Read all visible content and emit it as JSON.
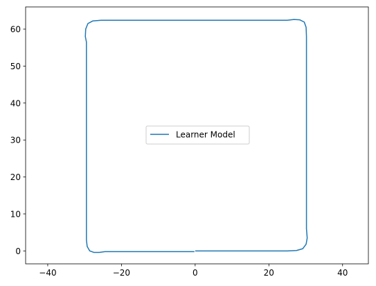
{
  "chart_data": {
    "type": "line",
    "title": "",
    "xlabel": "",
    "ylabel": "",
    "xlim": [
      -46,
      47
    ],
    "ylim": [
      -3.5,
      66
    ],
    "xticks": [
      -40,
      -20,
      0,
      20,
      40
    ],
    "yticks": [
      0,
      10,
      20,
      30,
      40,
      50,
      60
    ],
    "xtick_labels": [
      "−40",
      "−20",
      "0",
      "20",
      "40"
    ],
    "ytick_labels": [
      "0",
      "10",
      "20",
      "30",
      "40",
      "50",
      "60"
    ],
    "grid": false,
    "legend": {
      "placement": "center",
      "entries": [
        "Learner Model"
      ]
    },
    "series": [
      {
        "name": "Learner Model",
        "color": "#1f77b4",
        "points": [
          [
            0,
            0
          ],
          [
            5,
            0
          ],
          [
            10,
            0
          ],
          [
            15,
            0
          ],
          [
            20,
            0
          ],
          [
            25,
            0
          ],
          [
            27.5,
            0.1
          ],
          [
            29.2,
            0.6
          ],
          [
            30.1,
            1.8
          ],
          [
            30.4,
            3.5
          ],
          [
            30.2,
            6
          ],
          [
            30.2,
            10
          ],
          [
            30.2,
            20
          ],
          [
            30.2,
            30
          ],
          [
            30.2,
            40
          ],
          [
            30.2,
            50
          ],
          [
            30.2,
            58
          ],
          [
            30.1,
            60.5
          ],
          [
            29.6,
            61.9
          ],
          [
            28.4,
            62.5
          ],
          [
            26.8,
            62.6
          ],
          [
            25,
            62.4
          ],
          [
            20,
            62.4
          ],
          [
            10,
            62.4
          ],
          [
            0,
            62.4
          ],
          [
            -10,
            62.4
          ],
          [
            -20,
            62.4
          ],
          [
            -25.5,
            62.4
          ],
          [
            -27.8,
            62.2
          ],
          [
            -29.1,
            61.5
          ],
          [
            -29.7,
            60
          ],
          [
            -29.8,
            58
          ],
          [
            -29.5,
            56.5
          ],
          [
            -29.5,
            50
          ],
          [
            -29.5,
            40
          ],
          [
            -29.5,
            30
          ],
          [
            -29.5,
            20
          ],
          [
            -29.5,
            10
          ],
          [
            -29.5,
            3
          ],
          [
            -29.3,
            1.2
          ],
          [
            -28.6,
            0
          ],
          [
            -27.5,
            -0.4
          ],
          [
            -26,
            -0.4
          ],
          [
            -24.5,
            -0.2
          ],
          [
            -20,
            -0.2
          ],
          [
            -10,
            -0.2
          ],
          [
            -5,
            -0.2
          ],
          [
            -0.2,
            -0.2
          ]
        ]
      }
    ]
  }
}
